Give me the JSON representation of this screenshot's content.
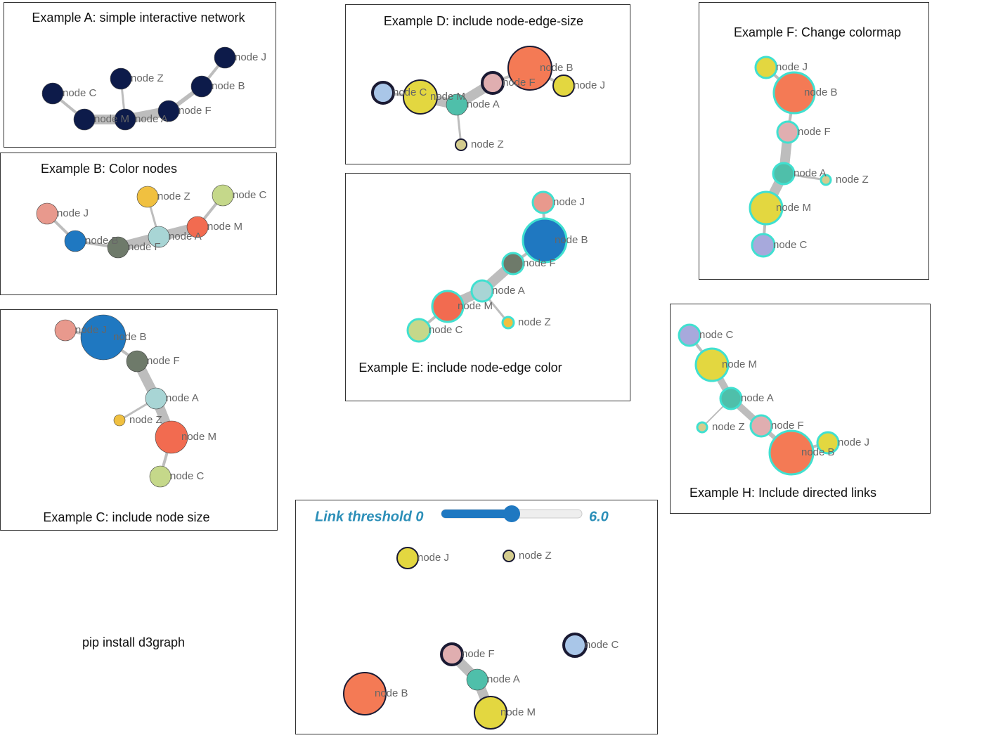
{
  "panels": [
    {
      "title": "Example A: simple interactive network",
      "nodes": [
        "node C",
        "node M",
        "node Z",
        "node A",
        "node F",
        "node B",
        "node J"
      ]
    },
    {
      "title": "Example B: Color nodes",
      "nodes": [
        "node J",
        "node B",
        "node F",
        "node A",
        "node M",
        "node Z",
        "node C"
      ]
    },
    {
      "title": "Example C: include node size",
      "nodes": [
        "node J",
        "node B",
        "node F",
        "node A",
        "node Z",
        "node M",
        "node C"
      ]
    },
    {
      "title": "Example D: include node-edge-size",
      "nodes": [
        "node C",
        "node M",
        "node A",
        "node F",
        "node B",
        "node J",
        "node Z"
      ]
    },
    {
      "title": "Example E: include node-edge color",
      "nodes": [
        "node J",
        "node B",
        "node F",
        "node A",
        "node M",
        "node C",
        "node Z"
      ]
    },
    {
      "title": "Example F: Change colormap",
      "nodes": [
        "node J",
        "node B",
        "node F",
        "node A",
        "node Z",
        "node M",
        "node C"
      ]
    },
    {
      "title": "Example H: Include directed links",
      "nodes": [
        "node C",
        "node M",
        "node A",
        "node Z",
        "node F",
        "node B",
        "node J"
      ]
    },
    {
      "slider": {
        "label": "Link threshold 0",
        "max": "6.0"
      },
      "nodes": [
        "node J",
        "node Z",
        "node F",
        "node A",
        "node M",
        "node B",
        "node C"
      ]
    }
  ],
  "footer": "pip install d3graph"
}
